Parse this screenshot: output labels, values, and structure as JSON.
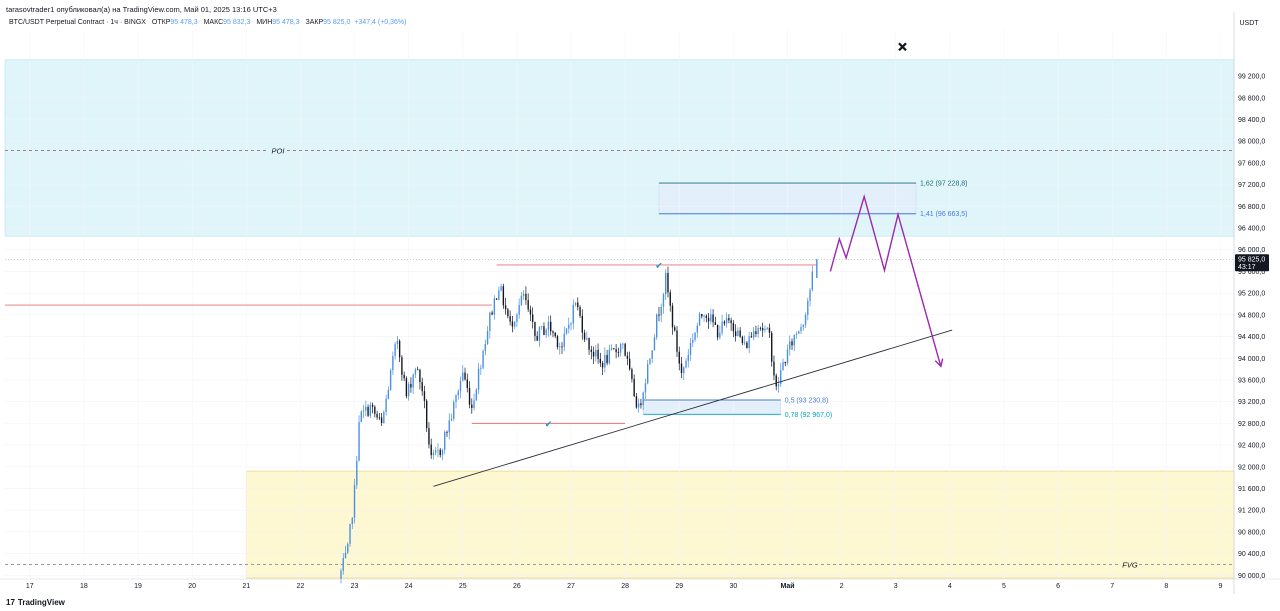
{
  "header": {
    "published": "tarasovtrader1 опубликовал(а) на TradingView.com, Май 01, 2025 13:16 UTC+3"
  },
  "symbol_bar": {
    "symbol": "BTC/USDT Perpetual Contract · 1ч · BINGX",
    "open_label": "ОТКР",
    "open_value": "95 478,3",
    "high_label": "МАКС",
    "high_value": "95 832,3",
    "low_label": "МИН",
    "low_value": "95 478,3",
    "close_label": "ЗАКР",
    "close_value": "95 825,0",
    "change": "+347,4 (+0,36%)"
  },
  "branding": {
    "logo": "17",
    "name": "TradingView"
  },
  "colors": {
    "bull": "#4a90e2",
    "bear": "#131722",
    "poi_zone": "#dff5fa",
    "fvg_zone": "#fdf7d2",
    "fib_zone": "#e3f0fc",
    "projection": "#9c27b0",
    "resistance": "#e57373",
    "accent": "#5b9cf6",
    "price_tag": "#131722"
  },
  "icons": {
    "close_marker": "x-mark-icon",
    "checkmark": "checkmark-icon"
  },
  "chart_data": {
    "type": "candlestick",
    "timeframe": "1ч",
    "exchange": "BINGX",
    "symbol": "BTC/USDT Perpetual Contract",
    "currency": "USDT",
    "y_axis": {
      "unit": "USDT",
      "ylim": [
        89950,
        100050
      ],
      "ticks": [
        "90 000,0",
        "90 400,0",
        "90 800,0",
        "91 200,0",
        "91 600,0",
        "92 000,0",
        "92 400,0",
        "92 800,0",
        "93 200,0",
        "93 600,0",
        "94 000,0",
        "94 400,0",
        "94 800,0",
        "95 200,0",
        "95 600,0",
        "96 000,0",
        "96 400,0",
        "96 800,0",
        "97 200,0",
        "97 600,0",
        "98 000,0",
        "98 400,0",
        "98 800,0",
        "99 200,0"
      ]
    },
    "x_axis": {
      "start": "2025-04-16T13:00",
      "end": "2025-05-09T06:00",
      "ticks": [
        {
          "label": "17",
          "t": "2025-04-17T00:00"
        },
        {
          "label": "18",
          "t": "2025-04-18T00:00"
        },
        {
          "label": "19",
          "t": "2025-04-19T00:00"
        },
        {
          "label": "20",
          "t": "2025-04-20T00:00"
        },
        {
          "label": "21",
          "t": "2025-04-21T00:00"
        },
        {
          "label": "22",
          "t": "2025-04-22T00:00"
        },
        {
          "label": "23",
          "t": "2025-04-23T00:00"
        },
        {
          "label": "24",
          "t": "2025-04-24T00:00"
        },
        {
          "label": "25",
          "t": "2025-04-25T00:00"
        },
        {
          "label": "26",
          "t": "2025-04-26T00:00"
        },
        {
          "label": "27",
          "t": "2025-04-27T00:00"
        },
        {
          "label": "28",
          "t": "2025-04-28T00:00"
        },
        {
          "label": "29",
          "t": "2025-04-29T00:00"
        },
        {
          "label": "30",
          "t": "2025-04-30T00:00"
        },
        {
          "label": "Май",
          "t": "2025-05-01T00:00",
          "bold": true
        },
        {
          "label": "2",
          "t": "2025-05-02T00:00"
        },
        {
          "label": "3",
          "t": "2025-05-03T00:00"
        },
        {
          "label": "4",
          "t": "2025-05-04T00:00"
        },
        {
          "label": "5",
          "t": "2025-05-05T00:00"
        },
        {
          "label": "6",
          "t": "2025-05-06T00:00"
        },
        {
          "label": "7",
          "t": "2025-05-07T00:00"
        },
        {
          "label": "8",
          "t": "2025-05-08T00:00"
        },
        {
          "label": "9",
          "t": "2025-05-09T00:00"
        }
      ]
    },
    "last_price": {
      "price": 95825.0,
      "label": "95 825,0",
      "countdown": "43:17"
    },
    "path_anchors": [
      [
        "2025-04-22T18:00",
        89930
      ],
      [
        "2025-04-22T22:00",
        90450
      ],
      [
        "2025-04-23T01:00",
        91550
      ],
      [
        "2025-04-23T03:00",
        92900
      ],
      [
        "2025-04-23T08:00",
        93100
      ],
      [
        "2025-04-23T13:00",
        92750
      ],
      [
        "2025-04-23T18:00",
        93950
      ],
      [
        "2025-04-23T20:00",
        94350
      ],
      [
        "2025-04-24T00:00",
        93300
      ],
      [
        "2025-04-24T04:00",
        93850
      ],
      [
        "2025-04-24T07:00",
        93450
      ],
      [
        "2025-04-24T11:00",
        92100
      ],
      [
        "2025-04-24T15:00",
        92300
      ],
      [
        "2025-04-24T20:00",
        92950
      ],
      [
        "2025-04-25T01:00",
        93750
      ],
      [
        "2025-04-25T05:00",
        93100
      ],
      [
        "2025-04-25T09:00",
        93950
      ],
      [
        "2025-04-25T13:00",
        94750
      ],
      [
        "2025-04-25T17:00",
        95350
      ],
      [
        "2025-04-25T22:00",
        94600
      ],
      [
        "2025-04-26T04:00",
        95150
      ],
      [
        "2025-04-26T09:00",
        94400
      ],
      [
        "2025-04-26T15:00",
        94600
      ],
      [
        "2025-04-26T21:00",
        94200
      ],
      [
        "2025-04-27T03:00",
        95050
      ],
      [
        "2025-04-27T08:00",
        94300
      ],
      [
        "2025-04-27T14:00",
        93900
      ],
      [
        "2025-04-27T20:00",
        94100
      ],
      [
        "2025-04-28T00:00",
        94300
      ],
      [
        "2025-04-28T04:00",
        93500
      ],
      [
        "2025-04-28T07:00",
        93050
      ],
      [
        "2025-04-28T11:00",
        93850
      ],
      [
        "2025-04-28T15:00",
        94700
      ],
      [
        "2025-04-28T19:00",
        95450
      ],
      [
        "2025-04-28T23:00",
        94400
      ],
      [
        "2025-04-29T02:00",
        93700
      ],
      [
        "2025-04-29T07:00",
        94400
      ],
      [
        "2025-04-29T12:00",
        94900
      ],
      [
        "2025-04-29T18:00",
        94500
      ],
      [
        "2025-04-30T00:00",
        94700
      ],
      [
        "2025-04-30T06:00",
        94200
      ],
      [
        "2025-04-30T12:00",
        94650
      ],
      [
        "2025-04-30T17:00",
        94400
      ],
      [
        "2025-04-30T20:00",
        93400
      ],
      [
        "2025-04-30T23:00",
        93900
      ],
      [
        "2025-05-01T04:00",
        94400
      ],
      [
        "2025-05-01T08:00",
        94700
      ],
      [
        "2025-05-01T12:00",
        95478.3
      ]
    ],
    "last_candle": {
      "t": "2025-05-01T13:00",
      "open": 95478.3,
      "high": 95832.3,
      "low": 95478.3,
      "close": 95825.0
    },
    "zones": [
      {
        "name": "POI",
        "label": "POI",
        "from": 96250,
        "to": 99500,
        "style": "poi"
      },
      {
        "name": "FVG",
        "label": "FVG",
        "from": 89950,
        "to": 91920,
        "start": "2025-04-21T00:00",
        "style": "fvg"
      },
      {
        "name": "fib-zone-upper",
        "from": 96663.5,
        "to": 97228.8,
        "start": "2025-04-28T15:00",
        "end": "2025-05-03T09:00",
        "style": "fib"
      },
      {
        "name": "fib-zone-lower",
        "from": 92967.0,
        "to": 93230.8,
        "start": "2025-04-28T08:00",
        "end": "2025-04-30T21:00",
        "style": "fib"
      }
    ],
    "horizontal_lines": [
      {
        "name": "poi-dashed-line",
        "price": 97830,
        "label": "POI",
        "dashed": true,
        "color": "#9c6b74"
      },
      {
        "name": "fvg-dashed-line",
        "price": 90200,
        "label": "FVG",
        "dashed": true,
        "color": "#8d8d8d"
      },
      {
        "name": "resistance-left",
        "price": 94980,
        "start": "2025-04-16T13:00",
        "end": "2025-04-25T13:00",
        "color": "#e57373"
      },
      {
        "name": "resistance-top",
        "price": 95720,
        "start": "2025-04-25T15:00",
        "end": "2025-05-01T13:00",
        "color": "#e57373"
      },
      {
        "name": "support-line",
        "price": 92800,
        "start": "2025-04-25T04:00",
        "end": "2025-04-28T00:00",
        "color": "#e57373"
      }
    ],
    "fib_levels": [
      {
        "ratio": "1,62",
        "value": 97228.8,
        "label": "1,62 (97 228,8)",
        "start": "2025-04-28T15:00",
        "end": "2025-05-03T09:00",
        "color": "#1f6e79"
      },
      {
        "ratio": "1,41",
        "value": 96663.5,
        "label": "1,41 (96 663,5)",
        "start": "2025-04-28T15:00",
        "end": "2025-05-03T09:00",
        "color": "#4a7ad8"
      },
      {
        "ratio": "0,5",
        "value": 93230.8,
        "label": "0,5 (93 230,8)",
        "start": "2025-04-28T08:00",
        "end": "2025-04-30T21:00",
        "color": "#4a7ad8"
      },
      {
        "ratio": "0,78",
        "value": 92967.0,
        "label": "0,78 (92 967,0)",
        "start": "2025-04-28T08:00",
        "end": "2025-04-30T21:00",
        "color": "#00a8c0"
      }
    ],
    "trendline": {
      "from": [
        "2025-04-24T11:00",
        91640
      ],
      "to": [
        "2025-05-04T01:00",
        94520
      ]
    },
    "projection_path": [
      [
        "2025-05-01T19:00",
        95600
      ],
      [
        "2025-05-01T23:00",
        96200
      ],
      [
        "2025-05-02T02:00",
        95850
      ],
      [
        "2025-05-02T10:00",
        96980
      ],
      [
        "2025-05-02T19:00",
        95620
      ],
      [
        "2025-05-03T01:00",
        96650
      ],
      [
        "2025-05-03T20:00",
        93850
      ]
    ],
    "markers": [
      {
        "type": "checkmark",
        "t": "2025-04-28T15:00",
        "price": 95720
      },
      {
        "type": "checkmark",
        "t": "2025-04-26T14:00",
        "price": 92800
      },
      {
        "type": "x",
        "t": "2025-05-03T03:00",
        "price": 99740
      }
    ]
  }
}
